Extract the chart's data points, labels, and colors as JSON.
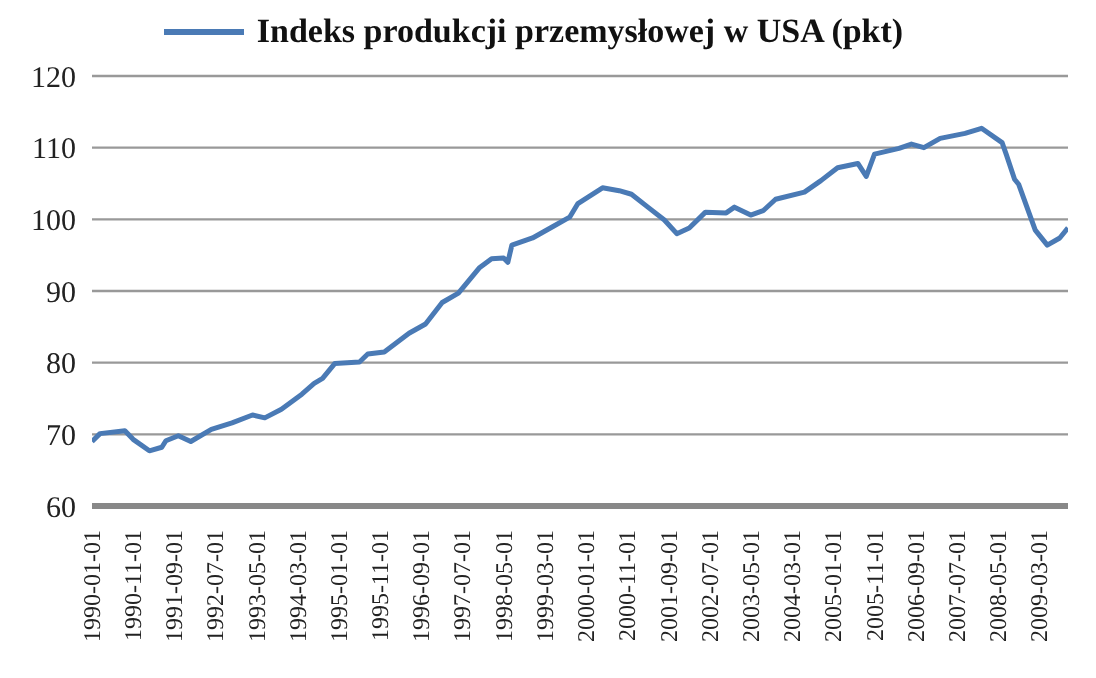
{
  "chart_data": {
    "type": "line",
    "legend": "top",
    "grid": "y",
    "marker": "none",
    "line_style": "solid",
    "x": [
      "1990-01",
      "1990-03",
      "1990-09",
      "1990-11",
      "1991-03",
      "1991-06",
      "1991-07",
      "1991-10",
      "1992-01",
      "1992-06",
      "1992-11",
      "1993-04",
      "1993-07",
      "1993-11",
      "1994-04",
      "1994-07",
      "1994-09",
      "1994-12",
      "1995-06",
      "1995-08",
      "1995-12",
      "1996-06",
      "1996-10",
      "1997-02",
      "1997-06",
      "1997-11",
      "1998-02",
      "1998-05",
      "1998-06",
      "1998-07",
      "1998-12",
      "1999-05",
      "1999-09",
      "1999-11",
      "2000-05",
      "2000-09",
      "2000-12",
      "2001-04",
      "2001-08",
      "2001-11",
      "2002-02",
      "2002-06",
      "2002-11",
      "2003-01",
      "2003-05",
      "2003-08",
      "2003-11",
      "2004-06",
      "2004-10",
      "2005-02",
      "2005-07",
      "2005-09",
      "2005-11",
      "2006-05",
      "2006-08",
      "2006-11",
      "2007-03",
      "2007-09",
      "2008-01",
      "2008-06",
      "2008-07",
      "2008-09",
      "2008-10",
      "2009-02",
      "2009-05",
      "2009-08",
      "2009-10"
    ],
    "series": [
      {
        "name": "Indeks produkcji przemysłowej w USA (pkt)",
        "color": "#4a7ab5",
        "values": [
          69.0,
          70.1,
          70.5,
          69.3,
          67.7,
          68.2,
          69.1,
          69.8,
          69.0,
          70.7,
          71.6,
          72.7,
          72.3,
          73.5,
          75.6,
          77.1,
          77.8,
          79.9,
          80.1,
          81.2,
          81.5,
          84.1,
          85.4,
          88.4,
          89.7,
          93.2,
          94.5,
          94.6,
          94.0,
          96.4,
          97.4,
          99.0,
          100.3,
          102.2,
          104.4,
          104.0,
          103.5,
          101.7,
          99.9,
          98.0,
          98.8,
          101.0,
          100.9,
          101.7,
          100.6,
          101.2,
          102.8,
          103.8,
          105.4,
          107.2,
          107.8,
          106.0,
          109.1,
          109.9,
          110.5,
          110.0,
          111.3,
          112.0,
          112.7,
          110.7,
          109.1,
          105.6,
          104.9,
          98.5,
          96.4,
          97.4,
          98.8
        ]
      }
    ],
    "xlim": [
      "1990-01-01",
      "2009-10-01"
    ],
    "xticks": [
      "1990-01-01",
      "1990-11-01",
      "1991-09-01",
      "1992-07-01",
      "1993-05-01",
      "1994-03-01",
      "1995-01-01",
      "1995-11-01",
      "1996-09-01",
      "1997-07-01",
      "1998-05-01",
      "1999-03-01",
      "2000-01-01",
      "2000-11-01",
      "2001-09-01",
      "2002-07-01",
      "2003-05-01",
      "2004-03-01",
      "2005-01-01",
      "2005-11-01",
      "2006-09-01",
      "2007-07-01",
      "2008-05-01",
      "2009-03-01"
    ],
    "ylim": [
      60,
      120
    ],
    "yticks": [
      60,
      70,
      80,
      90,
      100,
      110,
      120
    ]
  }
}
